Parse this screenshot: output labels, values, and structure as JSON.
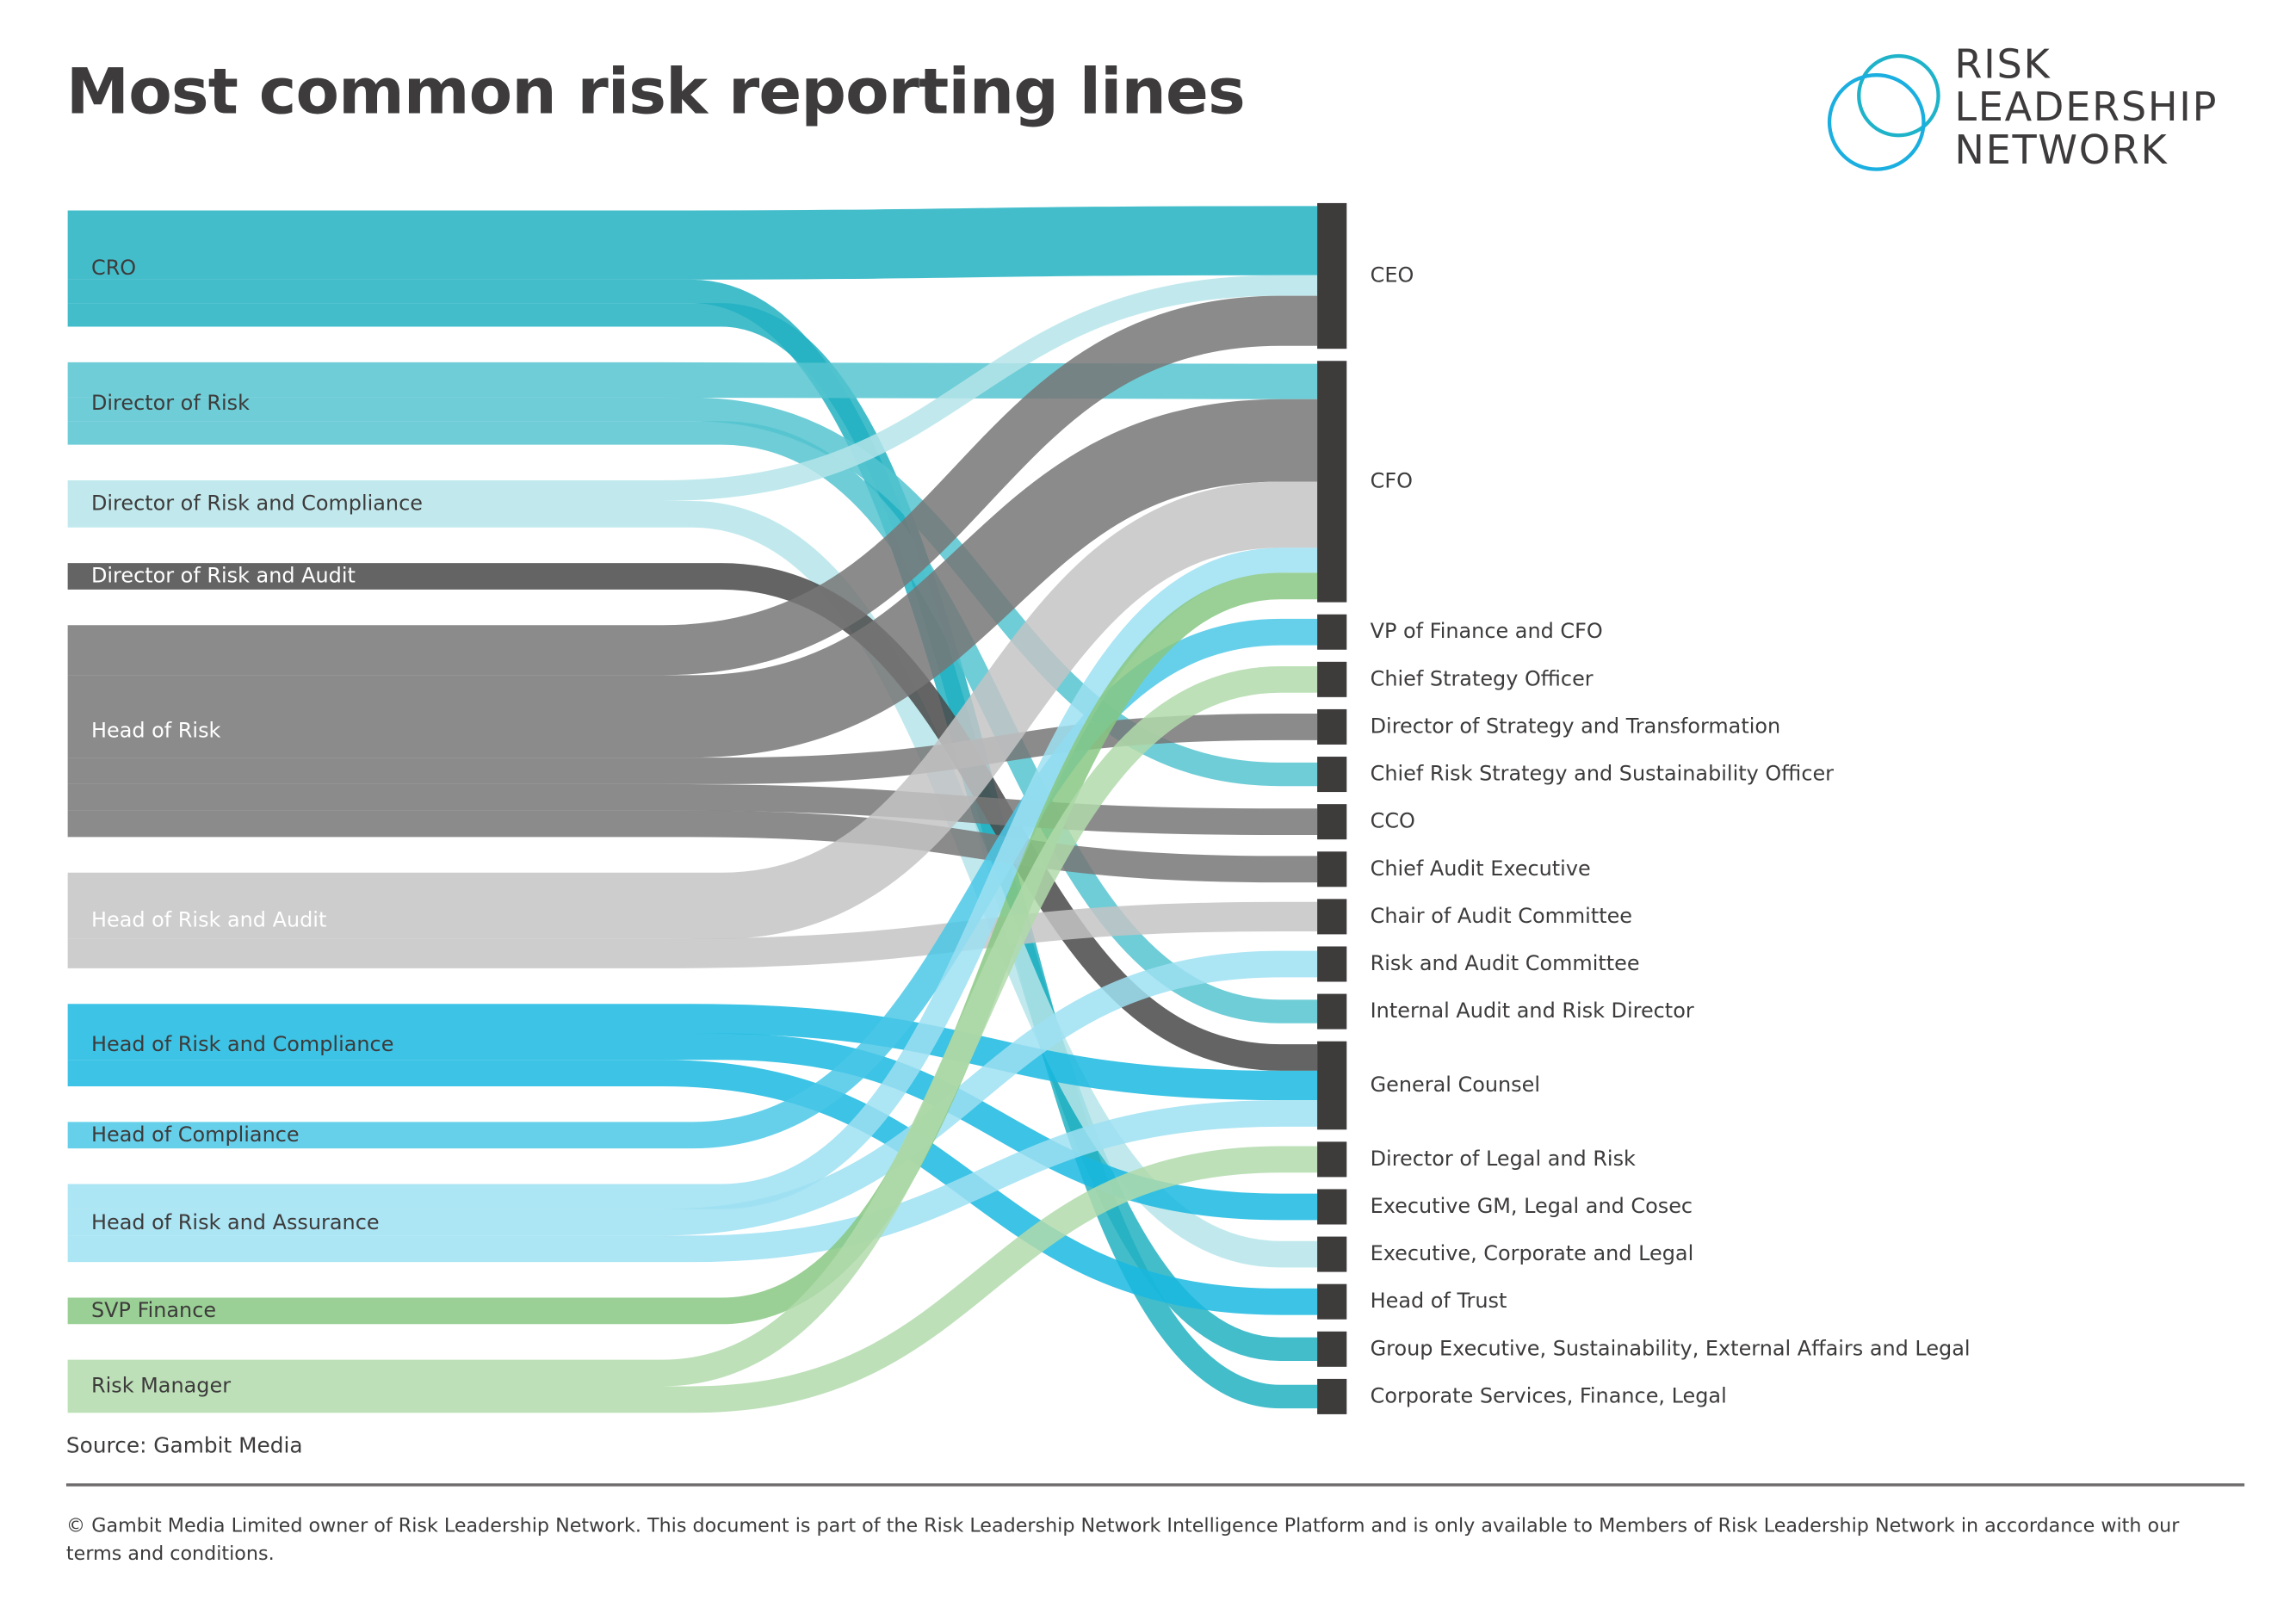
{
  "title": "Most common risk reporting lines",
  "logo": {
    "text_lines": [
      "RISK",
      "LEADERSHIP",
      "NETWORK"
    ],
    "color": "#1fb3c9"
  },
  "source": "Source: Gambit Media",
  "footer": "© Gambit Media Limited owner of Risk Leadership Network. This document is part of the Risk Leadership Network Intelligence Platform and is only available to Members of Risk Leadership Network in accordance with our terms and conditions.",
  "chart_data": {
    "type": "sankey",
    "title": "Most common risk reporting lines",
    "target_node_color": "#3e3b3b",
    "sources": [
      {
        "name": "CRO",
        "color": "#23b1c2"
      },
      {
        "name": "Director of Risk",
        "color": "#55c4d0"
      },
      {
        "name": "Director of Risk and Compliance",
        "color": "#b6e5ea"
      },
      {
        "name": "Director of Risk and Audit",
        "color": "#4a4949",
        "light_label": true
      },
      {
        "name": "Head of Risk",
        "color": "#787777",
        "light_label": true
      },
      {
        "name": "Head of Risk and Audit",
        "color": "#c4c4c5",
        "light_label": true
      },
      {
        "name": "Head of Risk and Compliance",
        "color": "#1ab9e0"
      },
      {
        "name": "Head of Compliance",
        "color": "#4bc8e8"
      },
      {
        "name": "Head of Risk and Assurance",
        "color": "#9ee0f2"
      },
      {
        "name": "SVP Finance",
        "color": "#88c882"
      },
      {
        "name": "Risk Manager",
        "color": "#b2dbac"
      }
    ],
    "targets": [
      "CEO",
      "CFO",
      "VP of Finance and CFO",
      "Chief Strategy Officer",
      "Director of Strategy and Transformation",
      "Chief Risk Strategy and Sustainability Officer",
      "CCO",
      "Chief Audit Executive",
      "Chair of Audit Committee",
      "Risk and Audit Committee",
      "Internal Audit and Risk Director",
      "General Counsel",
      "Director of Legal and Risk",
      "Executive GM, Legal and Cosec",
      "Executive, Corporate and Legal",
      "Head of Trust",
      "Group Executive, Sustainability, External Affairs and Legal",
      "Corporate Services, Finance, Legal"
    ],
    "links": [
      {
        "source": "CRO",
        "target": "CEO",
        "value": 47
      },
      {
        "source": "CRO",
        "target": "Group Executive, Sustainability, External Affairs and Legal",
        "value": 16
      },
      {
        "source": "CRO",
        "target": "Corporate Services, Finance, Legal",
        "value": 16
      },
      {
        "source": "Director of Risk",
        "target": "CFO",
        "value": 24
      },
      {
        "source": "Director of Risk",
        "target": "Chief Risk Strategy and Sustainability Officer",
        "value": 16
      },
      {
        "source": "Director of Risk",
        "target": "Internal Audit and Risk Director",
        "value": 16
      },
      {
        "source": "Director of Risk and Compliance",
        "target": "CEO",
        "value": 14
      },
      {
        "source": "Director of Risk and Compliance",
        "target": "Executive, Corporate and Legal",
        "value": 18
      },
      {
        "source": "Director of Risk and Audit",
        "target": "General Counsel",
        "value": 18
      },
      {
        "source": "Head of Risk",
        "target": "CEO",
        "value": 34
      },
      {
        "source": "Head of Risk",
        "target": "CFO",
        "value": 56
      },
      {
        "source": "Head of Risk",
        "target": "Director of Strategy and Transformation",
        "value": 18
      },
      {
        "source": "Head of Risk",
        "target": "CCO",
        "value": 18
      },
      {
        "source": "Head of Risk",
        "target": "Chief Audit Executive",
        "value": 18
      },
      {
        "source": "Head of Risk and Audit",
        "target": "CFO",
        "value": 45
      },
      {
        "source": "Head of Risk and Audit",
        "target": "Chair of Audit Committee",
        "value": 20
      },
      {
        "source": "Head of Risk and Compliance",
        "target": "General Counsel",
        "value": 20
      },
      {
        "source": "Head of Risk and Compliance",
        "target": "Executive GM, Legal and Cosec",
        "value": 18
      },
      {
        "source": "Head of Risk and Compliance",
        "target": "Head of Trust",
        "value": 18
      },
      {
        "source": "Head of Compliance",
        "target": "VP of Finance and CFO",
        "value": 18
      },
      {
        "source": "Head of Risk and Assurance",
        "target": "CFO",
        "value": 17
      },
      {
        "source": "Head of Risk and Assurance",
        "target": "Risk and Audit Committee",
        "value": 18
      },
      {
        "source": "Head of Risk and Assurance",
        "target": "General Counsel",
        "value": 18
      },
      {
        "source": "SVP Finance",
        "target": "CFO",
        "value": 18
      },
      {
        "source": "Risk Manager",
        "target": "Chief Strategy Officer",
        "value": 18
      },
      {
        "source": "Risk Manager",
        "target": "Director of Legal and Risk",
        "value": 18
      }
    ]
  }
}
